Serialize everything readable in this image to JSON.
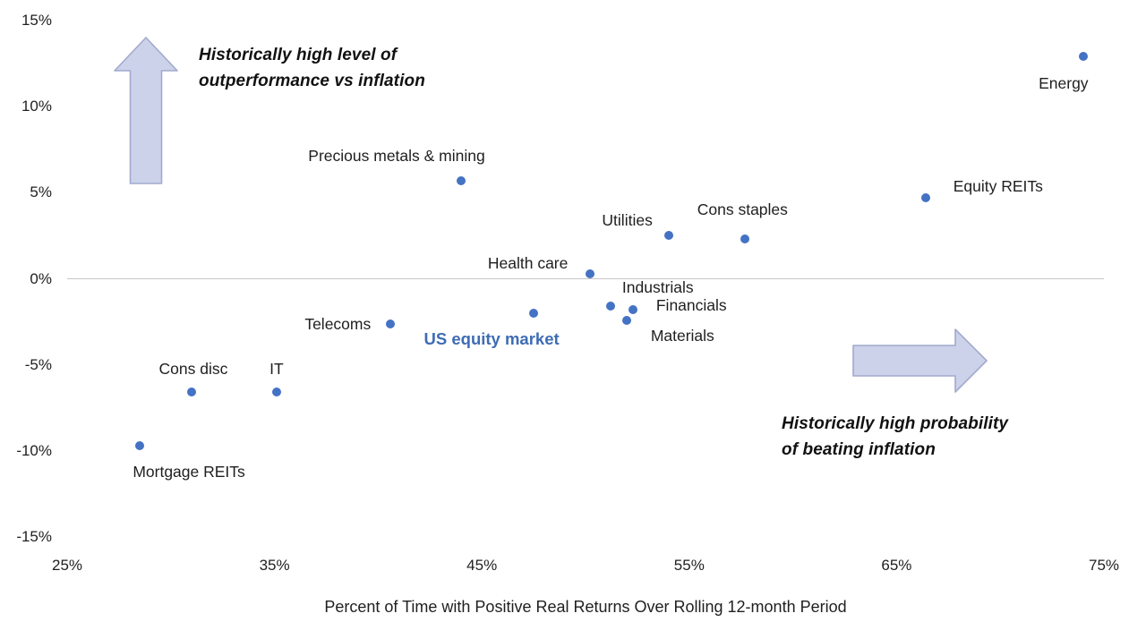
{
  "chart_data": {
    "type": "scatter",
    "title": "",
    "xlabel": "Percent of Time with Positive Real Returns Over Rolling 12-month Period",
    "ylabel": "",
    "xlim": [
      25,
      75
    ],
    "ylim": [
      -15,
      15
    ],
    "x_ticks": [
      "25%",
      "35%",
      "45%",
      "55%",
      "65%",
      "75%"
    ],
    "y_ticks": [
      "15%",
      "10%",
      "5%",
      "0%",
      "-5%",
      "-10%",
      "-15%"
    ],
    "grid": "single horizontal gridline at 0% only",
    "legend_position": "none",
    "colors": {
      "point": "#4472c4",
      "emphasis_label": "#3e6cb4",
      "arrow_fill": "#ccd2ea",
      "arrow_stroke": "#a2aacd",
      "gridline": "#c7c7c7",
      "text": "#1f1f1f"
    },
    "points": [
      {
        "id": "mortgage_reits",
        "label": "Mortgage REITs",
        "x": 28.5,
        "y": -9.7
      },
      {
        "id": "cons_disc",
        "label": "Cons disc",
        "x": 31.0,
        "y": -6.6
      },
      {
        "id": "it",
        "label": "IT",
        "x": 35.1,
        "y": -6.6
      },
      {
        "id": "telecoms",
        "label": "Telecoms",
        "x": 40.6,
        "y": -2.6
      },
      {
        "id": "us_equity_market",
        "label": "US equity market",
        "x": 47.5,
        "y": -2.0,
        "emphasis": true
      },
      {
        "id": "precious_metals",
        "label": "Precious metals & mining",
        "x": 44.0,
        "y": 5.7
      },
      {
        "id": "health_care",
        "label": "Health care",
        "x": 50.2,
        "y": 0.3
      },
      {
        "id": "industrials",
        "label": "Industrials",
        "x": 51.2,
        "y": -1.6
      },
      {
        "id": "financials",
        "label": "Financials",
        "x": 52.3,
        "y": -1.8
      },
      {
        "id": "materials",
        "label": "Materials",
        "x": 52.0,
        "y": -2.4
      },
      {
        "id": "utilities",
        "label": "Utilities",
        "x": 54.0,
        "y": 2.5
      },
      {
        "id": "cons_staples",
        "label": "Cons staples",
        "x": 57.7,
        "y": 2.3
      },
      {
        "id": "equity_reits",
        "label": "Equity REITs",
        "x": 66.4,
        "y": 4.7
      },
      {
        "id": "energy",
        "label": "Energy",
        "x": 74.0,
        "y": 12.9
      }
    ],
    "annotations": [
      {
        "id": "up-arrow-note",
        "lines": [
          "Historically high level of",
          "outperformance vs inflation"
        ]
      },
      {
        "id": "right-arrow-note",
        "lines": [
          "Historically high probability",
          "of beating inflation"
        ]
      }
    ]
  }
}
